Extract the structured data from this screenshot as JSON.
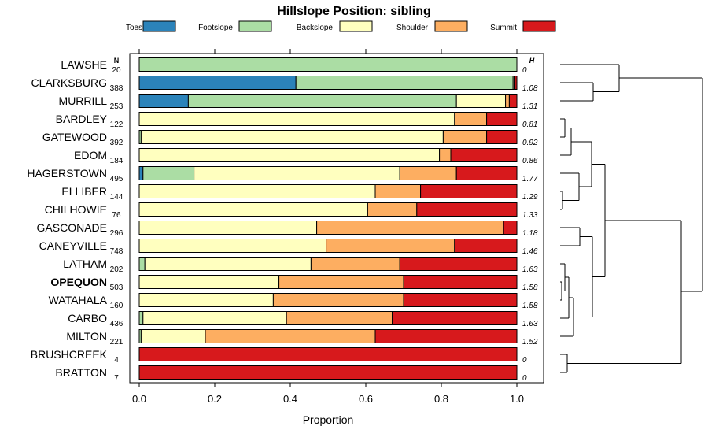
{
  "chart_data": {
    "type": "bar",
    "orientation": "horizontal",
    "stacked": true,
    "title": "Hillslope Position: sibling",
    "xlabel": "Proportion",
    "ylabel": "",
    "xlim": [
      0,
      1
    ],
    "x_ticks": [
      "0.0",
      "0.2",
      "0.4",
      "0.6",
      "0.8",
      "1.0"
    ],
    "n_header": "N",
    "h_header": "H",
    "legend_position": "top",
    "series": [
      {
        "name": "Toeslope",
        "color": "#2b83ba"
      },
      {
        "name": "Footslope",
        "color": "#abdda4"
      },
      {
        "name": "Backslope",
        "color": "#ffffbf"
      },
      {
        "name": "Shoulder",
        "color": "#fdae61"
      },
      {
        "name": "Summit",
        "color": "#d7191c"
      }
    ],
    "rows": [
      {
        "label": "LAWSHE",
        "n": "20",
        "h": "0",
        "values": [
          0,
          1.0,
          0,
          0,
          0
        ]
      },
      {
        "label": "CLARKSBURG",
        "n": "388",
        "h": "1.08",
        "values": [
          0.415,
          0.575,
          0.005,
          0,
          0.005
        ]
      },
      {
        "label": "MURRILL",
        "n": "253",
        "h": "1.31",
        "values": [
          0.13,
          0.71,
          0.13,
          0.01,
          0.02
        ]
      },
      {
        "label": "BARDLEY",
        "n": "122",
        "h": "0.81",
        "values": [
          0,
          0,
          0.835,
          0.085,
          0.08
        ]
      },
      {
        "label": "GATEWOOD",
        "n": "392",
        "h": "0.92",
        "values": [
          0,
          0.005,
          0.8,
          0.115,
          0.08
        ]
      },
      {
        "label": "EDOM",
        "n": "184",
        "h": "0.86",
        "values": [
          0,
          0,
          0.795,
          0.03,
          0.175
        ]
      },
      {
        "label": "HAGERSTOWN",
        "n": "495",
        "h": "1.77",
        "values": [
          0.01,
          0.135,
          0.545,
          0.15,
          0.16
        ]
      },
      {
        "label": "ELLIBER",
        "n": "144",
        "h": "1.29",
        "values": [
          0,
          0,
          0.625,
          0.12,
          0.255
        ]
      },
      {
        "label": "CHILHOWIE",
        "n": "76",
        "h": "1.33",
        "values": [
          0,
          0,
          0.605,
          0.13,
          0.265
        ]
      },
      {
        "label": "GASCONADE",
        "n": "296",
        "h": "1.18",
        "values": [
          0,
          0,
          0.47,
          0.495,
          0.035
        ]
      },
      {
        "label": "CANEYVILLE",
        "n": "748",
        "h": "1.46",
        "values": [
          0,
          0,
          0.495,
          0.34,
          0.165
        ]
      },
      {
        "label": "LATHAM",
        "n": "202",
        "h": "1.63",
        "values": [
          0,
          0.015,
          0.44,
          0.235,
          0.31
        ]
      },
      {
        "label": "OPEQUON",
        "n": "503",
        "h": "1.58",
        "values": [
          0,
          0,
          0.37,
          0.33,
          0.3
        ],
        "highlight": true
      },
      {
        "label": "WATAHALA",
        "n": "160",
        "h": "1.58",
        "values": [
          0,
          0,
          0.355,
          0.345,
          0.3
        ]
      },
      {
        "label": "CARBO",
        "n": "436",
        "h": "1.63",
        "values": [
          0,
          0.01,
          0.38,
          0.28,
          0.33
        ]
      },
      {
        "label": "MILTON",
        "n": "221",
        "h": "1.52",
        "values": [
          0,
          0.005,
          0.17,
          0.45,
          0.375
        ]
      },
      {
        "label": "BRUSHCREEK",
        "n": "4",
        "h": "0",
        "values": [
          0,
          0,
          0,
          0,
          1.0
        ]
      },
      {
        "label": "BRATTON",
        "n": "7",
        "h": "0",
        "values": [
          0,
          0,
          0,
          0,
          1.0
        ]
      }
    ],
    "dendrogram": "hierarchical clustering of the 18 series (right margin)"
  }
}
